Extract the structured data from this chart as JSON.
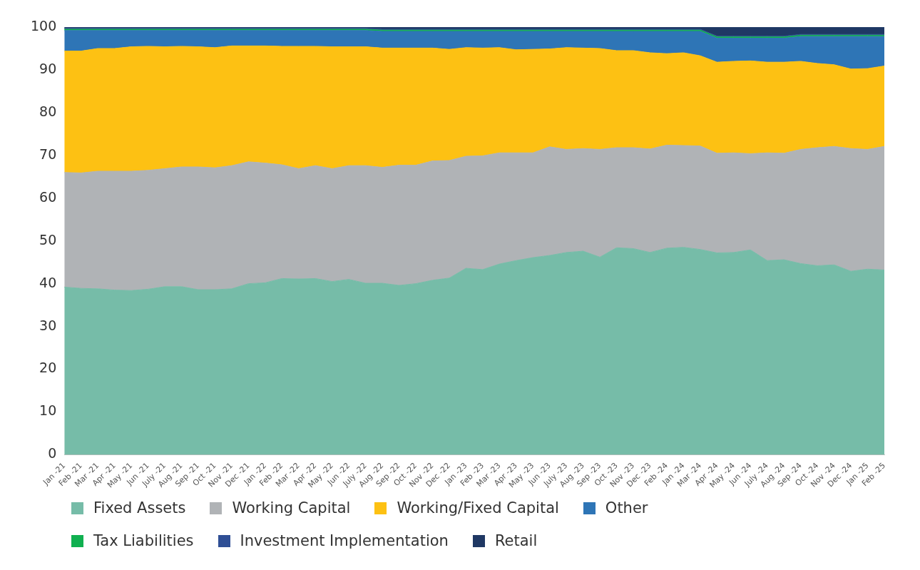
{
  "chart_data": {
    "type": "area",
    "stacked": true,
    "categories": [
      "Jan -21",
      "Feb -21",
      "Mar -21",
      "Apr -21",
      "May -21",
      "Jun -21",
      "July -21",
      "Aug -21",
      "Sep -21",
      "Oct -21",
      "Nov -21",
      "Dec -21",
      "Jan -22",
      "Feb -22",
      "Mar -22",
      "Apr -22",
      "May -22",
      "Jun -22",
      "July -22",
      "Aug -22",
      "Sep -22",
      "Oct -22",
      "Nov -22",
      "Dec -22",
      "Jan -23",
      "Feb -23",
      "Mar -23",
      "Apr -23",
      "May -23",
      "Jun -23",
      "July -23",
      "Aug -23",
      "Sep -23",
      "Oct -23",
      "Nov -23",
      "Dec -23",
      "Feb -24",
      "Jan -24",
      "Mar -24",
      "Apr -24",
      "May -24",
      "Jun -24",
      "July -24",
      "Aug -24",
      "Sep -24",
      "Oct -24",
      "Nov -24",
      "Dec -24",
      "Jan -25",
      "Feb -25"
    ],
    "series": [
      {
        "name": "Fixed Assets",
        "color": "#76bca8",
        "values": [
          39.2,
          38.9,
          38.8,
          38.5,
          38.4,
          38.7,
          39.3,
          39.3,
          38.6,
          38.6,
          38.8,
          40.0,
          40.2,
          41.2,
          41.1,
          41.2,
          40.5,
          41.0,
          40.1,
          40.1,
          39.6,
          40.0,
          40.8,
          41.3,
          43.6,
          43.3,
          44.6,
          45.4,
          46.1,
          46.6,
          47.3,
          47.6,
          46.2,
          48.4,
          48.2,
          47.3,
          48.3,
          48.5,
          48.0,
          47.2,
          47.3,
          47.9,
          45.4,
          45.6,
          44.7,
          44.2,
          44.4,
          42.9,
          43.4,
          43.2
        ]
      },
      {
        "name": "Working Capital",
        "color": "#b0b3b6",
        "values": [
          26.8,
          27.0,
          27.5,
          27.8,
          27.9,
          27.8,
          27.6,
          28.0,
          28.7,
          28.5,
          28.8,
          28.5,
          28.0,
          26.6,
          25.8,
          26.4,
          26.4,
          26.6,
          27.5,
          27.1,
          28.1,
          27.7,
          27.9,
          27.5,
          26.2,
          26.6,
          26.0,
          25.2,
          24.5,
          25.4,
          24.1,
          24.0,
          25.2,
          23.4,
          23.6,
          24.2,
          24.1,
          23.8,
          24.2,
          23.3,
          23.3,
          22.5,
          25.2,
          24.9,
          26.7,
          27.6,
          27.7,
          28.7,
          28.0,
          28.9
        ]
      },
      {
        "name": "Working/Fixed Capital",
        "color": "#fdc113",
        "values": [
          28.4,
          28.5,
          28.7,
          28.7,
          29.1,
          29.0,
          28.5,
          28.2,
          28.1,
          28.1,
          28.0,
          27.1,
          27.4,
          27.7,
          28.6,
          27.9,
          28.5,
          27.8,
          27.8,
          27.9,
          27.4,
          27.4,
          26.4,
          26.0,
          25.4,
          25.2,
          24.6,
          24.1,
          24.2,
          22.9,
          23.8,
          23.5,
          23.6,
          22.7,
          22.7,
          22.5,
          21.4,
          21.7,
          21.1,
          21.3,
          21.4,
          21.7,
          21.2,
          21.3,
          20.6,
          19.7,
          19.1,
          18.6,
          18.9,
          18.8
        ]
      },
      {
        "name": "Other",
        "color": "#2e75b6",
        "values": [
          4.8,
          4.8,
          4.2,
          4.2,
          3.8,
          3.7,
          3.8,
          3.7,
          3.8,
          4.0,
          3.6,
          3.6,
          3.6,
          3.7,
          3.7,
          3.7,
          3.8,
          3.8,
          3.8,
          3.9,
          3.9,
          3.9,
          3.9,
          4.2,
          3.8,
          3.9,
          3.8,
          4.3,
          4.2,
          4.1,
          3.8,
          3.9,
          4.0,
          4.5,
          4.5,
          5.0,
          5.2,
          5.0,
          5.7,
          5.6,
          5.4,
          5.3,
          5.6,
          5.6,
          5.8,
          6.3,
          6.6,
          7.6,
          7.5,
          6.9
        ]
      },
      {
        "name": "Tax Liabilities",
        "color": "#10b050",
        "values": [
          0.3,
          0.3,
          0.3,
          0.3,
          0.3,
          0.3,
          0.3,
          0.3,
          0.3,
          0.3,
          0.3,
          0.3,
          0.3,
          0.3,
          0.3,
          0.3,
          0.3,
          0.3,
          0.3,
          0.3,
          0.3,
          0.3,
          0.3,
          0.3,
          0.3,
          0.3,
          0.3,
          0.3,
          0.3,
          0.3,
          0.3,
          0.3,
          0.3,
          0.3,
          0.3,
          0.3,
          0.3,
          0.3,
          0.3,
          0.3,
          0.3,
          0.3,
          0.3,
          0.3,
          0.3,
          0.3,
          0.3,
          0.3,
          0.3,
          0.3
        ]
      },
      {
        "name": "Investment Implementation",
        "color": "#2f4f95",
        "values": [
          0.2,
          0.2,
          0.2,
          0.2,
          0.2,
          0.2,
          0.2,
          0.2,
          0.2,
          0.2,
          0.2,
          0.2,
          0.2,
          0.2,
          0.2,
          0.2,
          0.2,
          0.2,
          0.2,
          0.2,
          0.2,
          0.2,
          0.2,
          0.2,
          0.2,
          0.2,
          0.2,
          0.2,
          0.2,
          0.2,
          0.2,
          0.2,
          0.2,
          0.2,
          0.2,
          0.2,
          0.2,
          0.2,
          0.2,
          0.2,
          0.2,
          0.2,
          0.2,
          0.2,
          0.2,
          0.2,
          0.2,
          0.2,
          0.2,
          0.2
        ]
      },
      {
        "name": "Retail",
        "color": "#1f3864",
        "values": [
          0.3,
          0.3,
          0.3,
          0.3,
          0.3,
          0.3,
          0.3,
          0.3,
          0.3,
          0.3,
          0.3,
          0.3,
          0.3,
          0.3,
          0.3,
          0.3,
          0.3,
          0.3,
          0.3,
          0.5,
          0.5,
          0.5,
          0.5,
          0.5,
          0.5,
          0.5,
          0.5,
          0.5,
          0.5,
          0.5,
          0.5,
          0.5,
          0.5,
          0.5,
          0.5,
          0.5,
          0.5,
          0.5,
          0.5,
          2.1,
          2.1,
          2.1,
          2.1,
          2.1,
          1.7,
          1.7,
          1.7,
          1.7,
          1.7,
          1.7
        ]
      }
    ],
    "ylim": [
      0,
      100
    ],
    "yticks": [
      0,
      10,
      20,
      30,
      40,
      50,
      60,
      70,
      80,
      90,
      100
    ],
    "grid": false,
    "legend": "bottom"
  }
}
